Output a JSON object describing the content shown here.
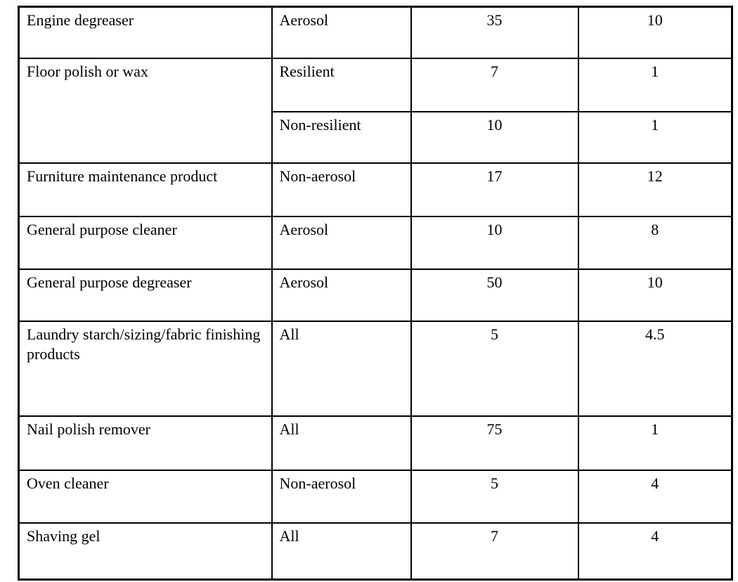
{
  "colors": {
    "background": "#ffffff",
    "text": "#000000",
    "border": "#000000"
  },
  "table": {
    "rows": [
      {
        "product": "Engine degreaser",
        "form": "Aerosol",
        "value1": "35",
        "value2": "10"
      },
      {
        "product": "Floor polish or wax",
        "form": "Resilient",
        "value1": "7",
        "value2": "1"
      },
      {
        "form": "Non-resilient",
        "value1": "10",
        "value2": "1"
      },
      {
        "product": "Furniture maintenance product",
        "form": "Non-aerosol",
        "value1": "17",
        "value2": "12"
      },
      {
        "product": "General purpose cleaner",
        "form": "Aerosol",
        "value1": "10",
        "value2": "8"
      },
      {
        "product": "General purpose degreaser",
        "form": "Aerosol",
        "value1": "50",
        "value2": "10"
      },
      {
        "product": "Laundry starch/sizing/fabric finishing products",
        "form": "All",
        "value1": "5",
        "value2": "4.5"
      },
      {
        "product": "Nail polish remover",
        "form": "All",
        "value1": "75",
        "value2": "1"
      },
      {
        "product": "Oven cleaner",
        "form": "Non-aerosol",
        "value1": "5",
        "value2": "4"
      },
      {
        "product": "Shaving gel",
        "form": "All",
        "value1": "7",
        "value2": "4"
      }
    ]
  }
}
